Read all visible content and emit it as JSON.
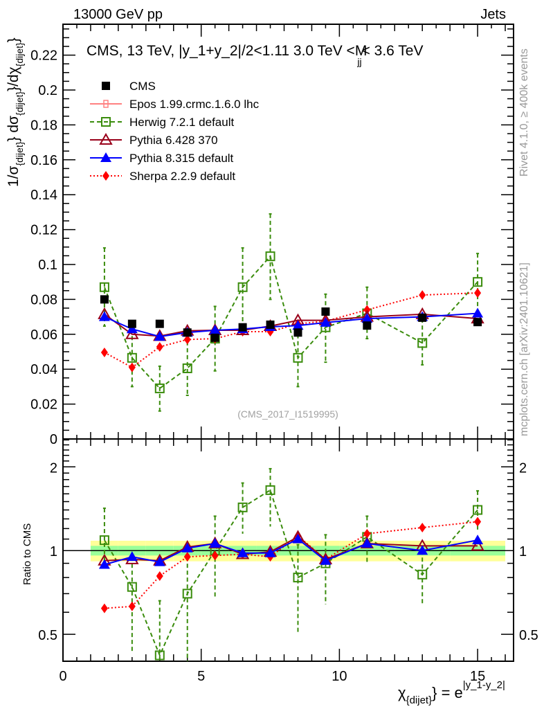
{
  "header": {
    "left_label": "13000 GeV pp",
    "right_label": "Jets"
  },
  "side_labels": {
    "rivet": "Rivet 4.1.0, ≥ 400k events",
    "mcplots": "mcplots.cern.ch [arXiv:2401.10621]"
  },
  "chart_data": {
    "type": "line",
    "title": "CMS, 13 TeV, |y_1+y_2|/2<1.11 3.0 TeV <M",
    "title_sub": "jj",
    "title_tail": "< 3.6 TeV",
    "analysis_tag": "(CMS_2017_I1519995)",
    "xlabel": "χ",
    "xlabel_sub": "{dijet}",
    "xlabel_tail": "} = e",
    "xlabel_sup": "|y_1-y_2|",
    "ylabel": "1/σ{dijet} dσ{dijet}/dχ{dijet}",
    "ylabel_parts": [
      "1/σ",
      "{dijet}",
      "} dσ",
      "{dijet}",
      "}/dχ",
      "{dijet}",
      "}"
    ],
    "xlim": [
      0,
      16.3
    ],
    "ylim": [
      0,
      0.2377
    ],
    "xticks": [
      "0",
      "5",
      "10",
      "15"
    ],
    "xtick_values": [
      0,
      5,
      10,
      15
    ],
    "yticks": [
      "0",
      "0.02",
      "0.04",
      "0.06",
      "0.08",
      "0.1",
      "0.12",
      "0.14",
      "0.16",
      "0.18",
      "0.2",
      "0.22"
    ],
    "ytick_values": [
      0,
      0.02,
      0.04,
      0.06,
      0.08,
      0.1,
      0.12,
      0.14,
      0.16,
      0.18,
      0.2,
      0.22
    ],
    "legend_position": "top-left",
    "x": [
      1.5,
      2.5,
      3.5,
      4.5,
      5.5,
      6.5,
      7.5,
      8.5,
      9.5,
      11,
      13,
      15
    ],
    "bin_edges": [
      1,
      2,
      3,
      4,
      5,
      6,
      7,
      8,
      9,
      10,
      12,
      14,
      16
    ],
    "series": [
      {
        "name": "CMS",
        "color": "#000000",
        "marker": "square-filled",
        "line": "none",
        "values": [
          0.08,
          0.066,
          0.066,
          0.061,
          0.058,
          0.064,
          0.0655,
          0.061,
          0.073,
          0.065,
          0.0695,
          0.067
        ]
      },
      {
        "name": "Epos 1.99.crmc.1.6.0 lhc",
        "color": "#ff8080",
        "marker": "cross-open",
        "line": "solid",
        "values": []
      },
      {
        "name": "Herwig 7.2.1 default",
        "color": "#3a8c0c",
        "marker": "square-open",
        "line": "dashed",
        "values": [
          0.087,
          0.0465,
          0.029,
          0.0405,
          0.0575,
          0.087,
          0.1047,
          0.0465,
          0.064,
          0.072,
          0.055,
          0.09
        ],
        "err_up": [
          0.1095,
          0.063,
          0.0417,
          0.056,
          0.076,
          0.1095,
          0.129,
          0.064,
          0.083,
          0.087,
          0.069,
          0.1063
        ],
        "err_down": [
          0.0647,
          0.03,
          0.016,
          0.025,
          0.039,
          0.064,
          0.08,
          0.03,
          0.044,
          0.0575,
          0.0425,
          0.073
        ]
      },
      {
        "name": "Pythia 6.428 370",
        "color": "#99001a",
        "marker": "triangle-open",
        "line": "solid",
        "values": [
          0.0715,
          0.06,
          0.059,
          0.062,
          0.0623,
          0.0623,
          0.0647,
          0.068,
          0.068,
          0.07,
          0.0715,
          0.069
        ]
      },
      {
        "name": "Pythia 8.315 default",
        "color": "#0000ff",
        "marker": "triangle-filled",
        "line": "solid",
        "values": [
          0.07,
          0.063,
          0.0587,
          0.061,
          0.0623,
          0.063,
          0.0643,
          0.065,
          0.0667,
          0.069,
          0.07,
          0.072
        ]
      },
      {
        "name": "Sherpa 2.2.9 default",
        "color": "#ff0000",
        "marker": "diamond-filled",
        "line": "dotted",
        "values": [
          0.0496,
          0.041,
          0.0528,
          0.057,
          0.0575,
          0.0615,
          0.0615,
          0.066,
          0.0675,
          0.074,
          0.0825,
          0.0837
        ]
      }
    ],
    "ratio": {
      "ylabel": "Ratio to CMS",
      "ylim": [
        0.4,
        2.52
      ],
      "scale": "log",
      "yticks": [
        "0.5",
        "1",
        "2"
      ],
      "ytick_values": [
        0.5,
        1,
        2
      ],
      "band_yellow": 0.085,
      "band_green": 0.04,
      "series": [
        {
          "name": "Herwig 7.2.1 default",
          "values": [
            1.09,
            0.74,
            0.42,
            0.7,
            1.0,
            1.43,
            1.65,
            0.8,
            0.9,
            1.12,
            0.82,
            1.4
          ],
          "err_up": [
            1.42,
            0.95,
            0.66,
            0.95,
            1.33,
            1.75,
            1.97,
            1.05,
            1.14,
            1.33,
            1.0,
            1.64
          ],
          "err_down": [
            0.87,
            0.43,
            0.4,
            0.4,
            0.68,
            1.15,
            1.22,
            0.5,
            0.64,
            0.9,
            0.64,
            1.18
          ]
        },
        {
          "name": "Pythia 6.428 370",
          "values": [
            0.92,
            0.93,
            0.92,
            1.03,
            1.06,
            0.97,
            0.99,
            1.12,
            0.93,
            1.06,
            1.04,
            1.04
          ]
        },
        {
          "name": "Pythia 8.315 default",
          "values": [
            0.89,
            0.95,
            0.91,
            1.02,
            1.06,
            0.98,
            0.98,
            1.1,
            0.92,
            1.06,
            1.0,
            1.09
          ]
        },
        {
          "name": "Sherpa 2.2.9 default",
          "values": [
            0.62,
            0.63,
            0.81,
            0.95,
            0.96,
            0.97,
            0.95,
            1.13,
            0.93,
            1.15,
            1.21,
            1.27
          ]
        }
      ]
    }
  }
}
